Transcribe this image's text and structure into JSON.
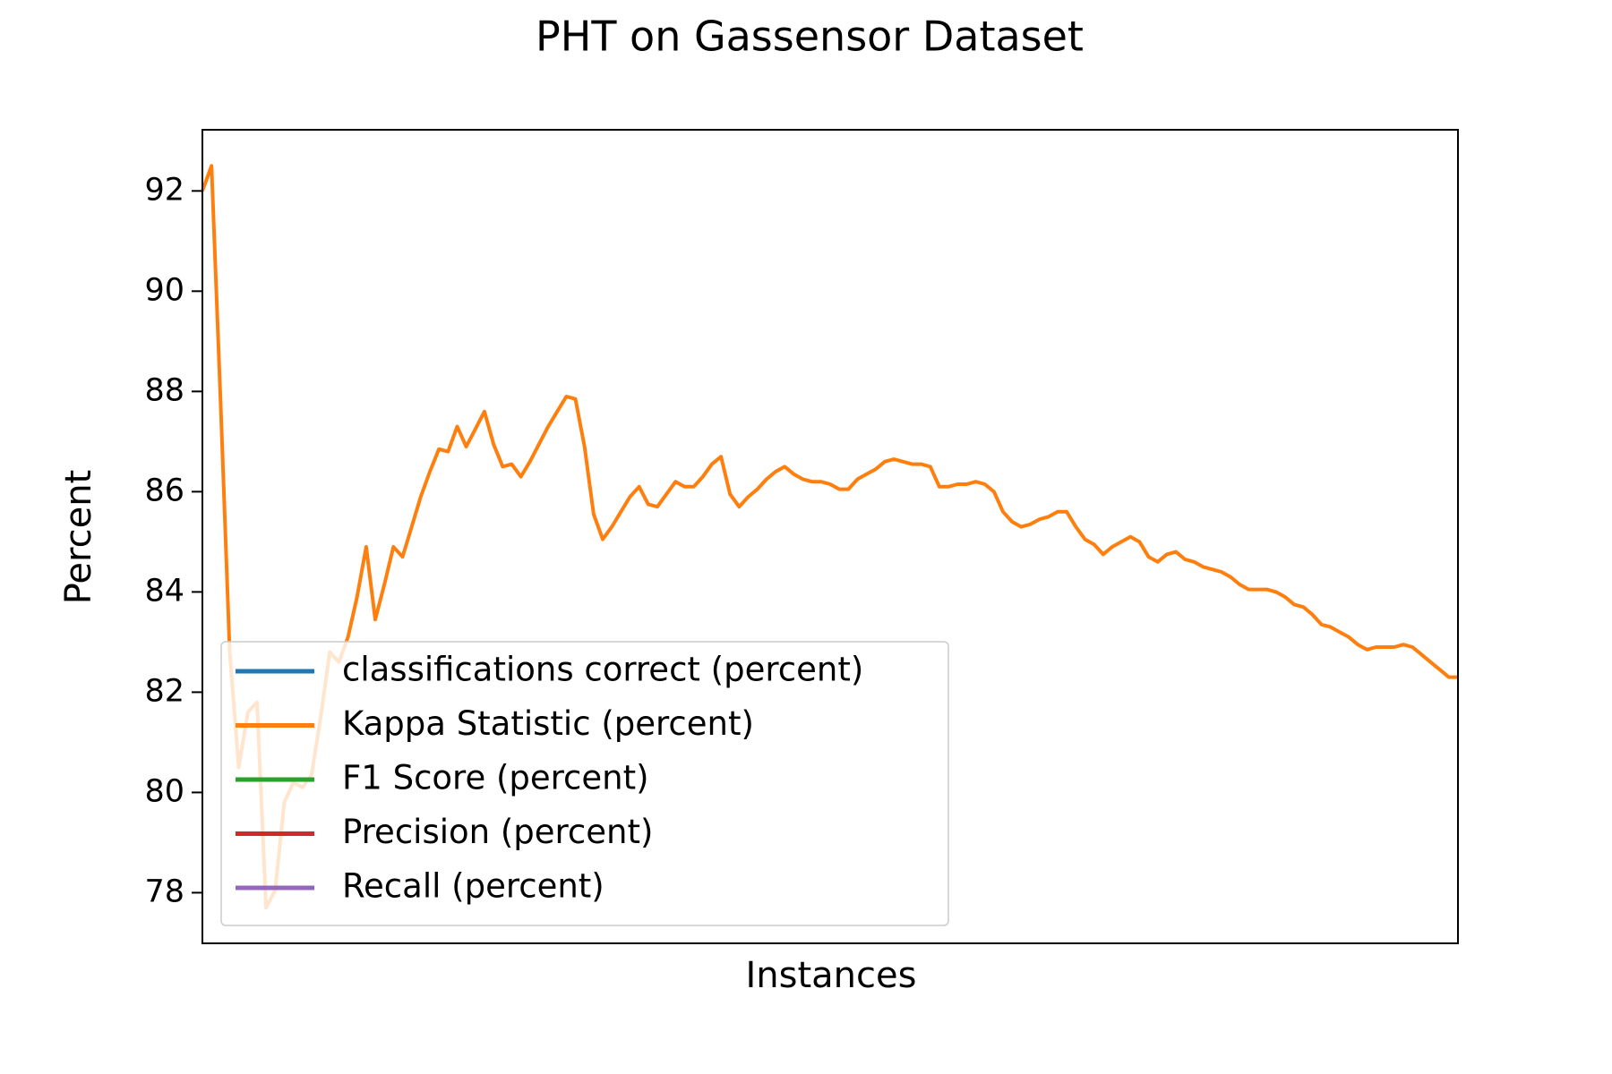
{
  "chart_data": {
    "type": "line",
    "title": "PHT on Gassensor Dataset",
    "xlabel": "Instances",
    "ylabel": "Percent",
    "series": [
      {
        "name": "classifications correct (percent)",
        "color": "#1f77b4",
        "values": [
          null,
          null,
          null,
          null,
          null,
          null,
          null,
          null,
          null,
          null,
          null,
          null,
          null,
          null,
          null,
          null,
          null,
          null,
          null,
          null,
          null,
          null,
          null,
          null,
          null,
          null,
          null,
          null,
          null,
          null,
          null,
          null,
          null,
          null,
          null,
          null,
          null,
          null,
          null,
          null,
          null,
          null,
          null,
          null,
          null,
          null,
          null,
          null,
          null,
          null,
          null,
          null,
          null,
          null,
          null,
          null,
          null,
          null,
          null,
          null,
          null,
          null,
          null,
          null,
          null,
          null,
          null,
          null,
          null,
          null,
          null,
          null,
          null,
          null,
          null,
          null,
          null,
          null,
          null,
          null,
          null,
          null,
          null,
          null,
          null,
          null,
          null,
          null,
          null,
          null,
          null,
          null,
          null,
          null,
          null,
          null,
          null,
          null,
          null,
          null,
          null,
          null,
          null,
          null,
          null,
          null,
          null,
          null,
          null,
          null,
          null,
          null,
          null,
          null,
          null,
          null,
          null,
          null,
          null,
          null,
          null,
          null,
          null,
          null,
          null,
          null,
          null,
          null,
          null,
          null,
          null,
          null,
          null,
          null,
          null,
          null,
          null,
          null,
          null
        ]
      },
      {
        "name": "Kappa Statistic (percent)",
        "color": "#ff7f0e",
        "values": [
          92.0,
          92.5,
          87.8,
          82.8,
          80.5,
          81.6,
          81.8,
          77.7,
          78.05,
          79.8,
          80.2,
          80.1,
          80.35,
          81.5,
          82.8,
          82.6,
          83.1,
          83.9,
          84.9,
          83.45,
          84.15,
          84.9,
          84.7,
          85.3,
          85.9,
          86.4,
          86.85,
          86.8,
          87.3,
          86.9,
          87.25,
          87.6,
          86.95,
          86.5,
          86.55,
          86.3,
          86.6,
          86.95,
          87.3,
          87.6,
          87.9,
          87.85,
          86.9,
          85.55,
          85.05,
          85.3,
          85.6,
          85.9,
          86.1,
          85.75,
          85.7,
          85.95,
          86.2,
          86.1,
          86.1,
          86.3,
          86.55,
          86.7,
          85.95,
          85.7,
          85.9,
          86.05,
          86.25,
          86.4,
          86.5,
          86.35,
          86.25,
          86.2,
          86.2,
          86.15,
          86.05,
          86.05,
          86.25,
          86.35,
          86.45,
          86.6,
          86.65,
          86.6,
          86.55,
          86.55,
          86.5,
          86.1,
          86.1,
          86.15,
          86.15,
          86.2,
          86.15,
          86.0,
          85.6,
          85.4,
          85.3,
          85.35,
          85.45,
          85.5,
          85.6,
          85.6,
          85.3,
          85.05,
          84.95,
          84.75,
          84.9,
          85.0,
          85.1,
          85.0,
          84.7,
          84.6,
          84.75,
          84.8,
          84.65,
          84.6,
          84.5,
          84.45,
          84.4,
          84.3,
          84.15,
          84.05,
          84.05,
          84.05,
          84.0,
          83.9,
          83.75,
          83.7,
          83.55,
          83.35,
          83.3,
          83.2,
          83.1,
          82.95,
          82.85,
          82.9,
          82.9,
          82.9,
          82.95,
          82.9,
          82.75,
          82.6,
          82.45,
          82.3,
          82.3
        ]
      },
      {
        "name": "F1 Score (percent)",
        "color": "#2ca02c",
        "values": [
          null,
          null,
          null,
          null,
          null,
          null,
          null,
          null,
          null,
          null,
          null,
          null,
          null,
          null,
          null,
          null,
          null,
          null,
          null,
          null,
          null,
          null,
          null,
          null,
          null,
          null,
          null,
          null,
          null,
          null,
          null,
          null,
          null,
          null,
          null,
          null,
          null,
          null,
          null,
          null,
          null,
          null,
          null,
          null,
          null,
          null,
          null,
          null,
          null,
          null,
          null,
          null,
          null,
          null,
          null,
          null,
          null,
          null,
          null,
          null,
          null,
          null,
          null,
          null,
          null,
          null,
          null,
          null,
          null,
          null,
          null,
          null,
          null,
          null,
          null,
          null,
          null,
          null,
          null,
          null,
          null,
          null,
          null,
          null,
          null,
          null,
          null,
          null,
          null,
          null,
          null,
          null,
          null,
          null,
          null,
          null,
          null,
          null,
          null,
          null,
          null,
          null,
          null,
          null,
          null,
          null,
          null,
          null,
          null,
          null,
          null,
          null,
          null,
          null,
          null,
          null,
          null,
          null,
          null,
          null,
          null,
          null,
          null,
          null,
          null,
          null,
          null,
          null,
          null,
          null,
          null,
          null,
          null,
          null,
          null,
          null,
          null,
          null,
          null
        ]
      },
      {
        "name": "Precision (percent)",
        "color": "#d62728",
        "values": [
          null,
          null,
          null,
          null,
          null,
          null,
          null,
          null,
          null,
          null,
          null,
          null,
          null,
          null,
          null,
          null,
          null,
          null,
          null,
          null,
          null,
          null,
          null,
          null,
          null,
          null,
          null,
          null,
          null,
          null,
          null,
          null,
          null,
          null,
          null,
          null,
          null,
          null,
          null,
          null,
          null,
          null,
          null,
          null,
          null,
          null,
          null,
          null,
          null,
          null,
          null,
          null,
          null,
          null,
          null,
          null,
          null,
          null,
          null,
          null,
          null,
          null,
          null,
          null,
          null,
          null,
          null,
          null,
          null,
          null,
          null,
          null,
          null,
          null,
          null,
          null,
          null,
          null,
          null,
          null,
          null,
          null,
          null,
          null,
          null,
          null,
          null,
          null,
          null,
          null,
          null,
          null,
          null,
          null,
          null,
          null,
          null,
          null,
          null,
          null,
          null,
          null,
          null,
          null,
          null,
          null,
          null,
          null,
          null,
          null,
          null,
          null,
          null,
          null,
          null,
          null,
          null,
          null,
          null,
          null,
          null,
          null,
          null,
          null,
          null,
          null,
          null,
          null,
          null,
          null,
          null,
          null,
          null,
          null,
          null,
          null,
          null,
          null,
          null
        ]
      },
      {
        "name": "Recall (percent)",
        "color": "#9467bd",
        "values": [
          null,
          null,
          null,
          null,
          null,
          null,
          null,
          null,
          null,
          null,
          null,
          null,
          null,
          null,
          null,
          null,
          null,
          null,
          null,
          null,
          null,
          null,
          null,
          null,
          null,
          null,
          null,
          null,
          null,
          null,
          null,
          null,
          null,
          null,
          null,
          null,
          null,
          null,
          null,
          null,
          null,
          null,
          null,
          null,
          null,
          null,
          null,
          null,
          null,
          null,
          null,
          null,
          null,
          null,
          null,
          null,
          null,
          null,
          null,
          null,
          null,
          null,
          null,
          null,
          null,
          null,
          null,
          null,
          null,
          null,
          null,
          null,
          null,
          null,
          null,
          null,
          null,
          null,
          null,
          null,
          null,
          null,
          null,
          null,
          null,
          null,
          null,
          null,
          null,
          null,
          null,
          null,
          null,
          null,
          null,
          null,
          null,
          null,
          null,
          null,
          null,
          null,
          null,
          null,
          null,
          null,
          null,
          null,
          null,
          null,
          null,
          null,
          null,
          null,
          null,
          null,
          null,
          null,
          null,
          null,
          null,
          null,
          null,
          null,
          null,
          null,
          null,
          null,
          null,
          null,
          null,
          null,
          null,
          null,
          null,
          null,
          null,
          null,
          null
        ]
      }
    ],
    "ylim": [
      76.99,
      93.22
    ],
    "yticks": [
      78,
      80,
      82,
      84,
      86,
      88,
      90,
      92
    ],
    "grid": false,
    "legend": "lower left"
  }
}
